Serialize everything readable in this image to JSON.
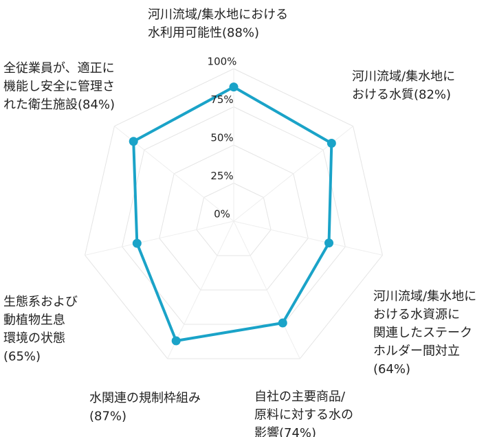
{
  "chart_data": {
    "type": "radar",
    "categories": [
      [
        "河川流域/集水地における",
        "水利用可能性(88%)"
      ],
      [
        "河川流域/集水地に",
        "おける水質(82%)"
      ],
      [
        "河川流域/集水地に",
        "おける水資源に",
        "関連したステーク",
        "ホルダー間対立",
        "(64%)"
      ],
      [
        "自社の主要商品/",
        "原料に対する水の",
        "影響(74%)"
      ],
      [
        "水関連の規制枠組み",
        "(87%)"
      ],
      [
        "生態系および",
        "動植物生息",
        "環境の状態",
        "(65%)"
      ],
      [
        "全従業員が、適正に",
        "機能し安全に管理さ",
        "れた衛生施設(84%)"
      ]
    ],
    "values": [
      88,
      82,
      64,
      74,
      87,
      65,
      84
    ],
    "color": "#1aa3c8",
    "ylim": [
      0,
      100
    ],
    "yticks": [
      {
        "value": 0,
        "label": "0%"
      },
      {
        "value": 25,
        "label": "25%"
      },
      {
        "value": 50,
        "label": "50%"
      },
      {
        "value": 75,
        "label": "75%"
      },
      {
        "value": 100,
        "label": "100%"
      }
    ],
    "grid": true
  }
}
